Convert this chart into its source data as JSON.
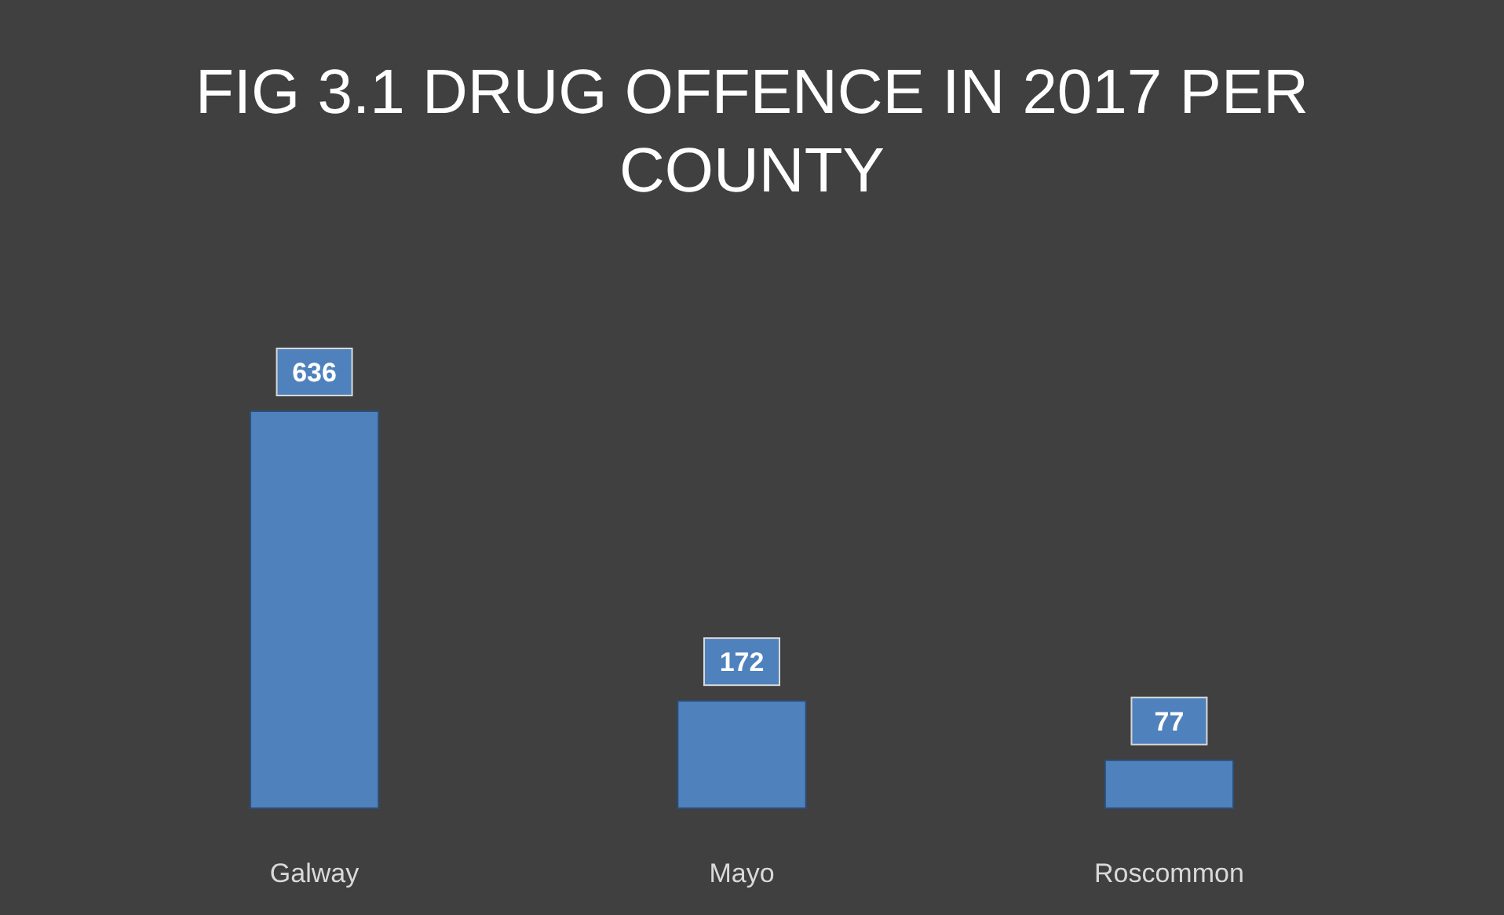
{
  "chart_data": {
    "type": "bar",
    "title": "FIG 3.1 DRUG OFFENCE IN 2017 PER COUNTY",
    "categories": [
      "Galway",
      "Mayo",
      "Roscommon"
    ],
    "values": [
      636,
      172,
      77
    ],
    "color": "#4f81bd",
    "data_labels": true
  }
}
